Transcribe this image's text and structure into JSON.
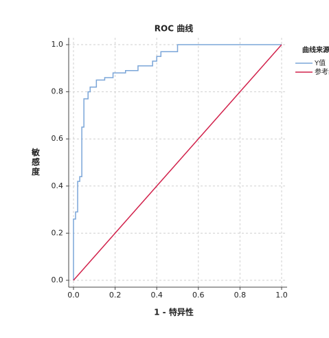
{
  "chart_data": {
    "type": "line",
    "title": "ROC 曲线",
    "xlabel": "1 - 特异性",
    "ylabel": "敏感度",
    "legend_title": "曲线来源",
    "legend": "right",
    "grid": true,
    "xlim": [
      0,
      1
    ],
    "ylim": [
      0,
      1
    ],
    "xticks": [
      {
        "value": 0,
        "label": "0.0"
      },
      {
        "value": 0.2,
        "label": "0.2"
      },
      {
        "value": 0.4,
        "label": "0.4"
      },
      {
        "value": 0.6,
        "label": "0.6"
      },
      {
        "value": 0.8,
        "label": "0.8"
      },
      {
        "value": 1,
        "label": "1.0"
      }
    ],
    "yticks": [
      {
        "value": 0,
        "label": "0.0"
      },
      {
        "value": 0.2,
        "label": "0.2"
      },
      {
        "value": 0.4,
        "label": "0.4"
      },
      {
        "value": 0.6,
        "label": "0.6"
      },
      {
        "value": 0.8,
        "label": "0.8"
      },
      {
        "value": 1,
        "label": "1.0"
      }
    ],
    "series": [
      {
        "name": "Y值",
        "color": "#7aa5d8",
        "x": [
          0,
          0,
          0.01,
          0.01,
          0.02,
          0.02,
          0.03,
          0.03,
          0.04,
          0.04,
          0.05,
          0.05,
          0.07,
          0.07,
          0.08,
          0.08,
          0.11,
          0.11,
          0.15,
          0.15,
          0.19,
          0.19,
          0.25,
          0.25,
          0.31,
          0.31,
          0.38,
          0.38,
          0.4,
          0.4,
          0.42,
          0.42,
          0.5,
          0.5,
          1.0
        ],
        "values": [
          0,
          0.26,
          0.26,
          0.29,
          0.29,
          0.42,
          0.42,
          0.44,
          0.44,
          0.65,
          0.65,
          0.77,
          0.77,
          0.8,
          0.8,
          0.82,
          0.82,
          0.85,
          0.85,
          0.86,
          0.86,
          0.88,
          0.88,
          0.89,
          0.89,
          0.91,
          0.91,
          0.93,
          0.93,
          0.95,
          0.95,
          0.97,
          0.97,
          1.0,
          1.0
        ]
      },
      {
        "name": "参考线",
        "color": "#d1204a",
        "x": [
          0,
          1
        ],
        "values": [
          0,
          1
        ]
      }
    ]
  }
}
